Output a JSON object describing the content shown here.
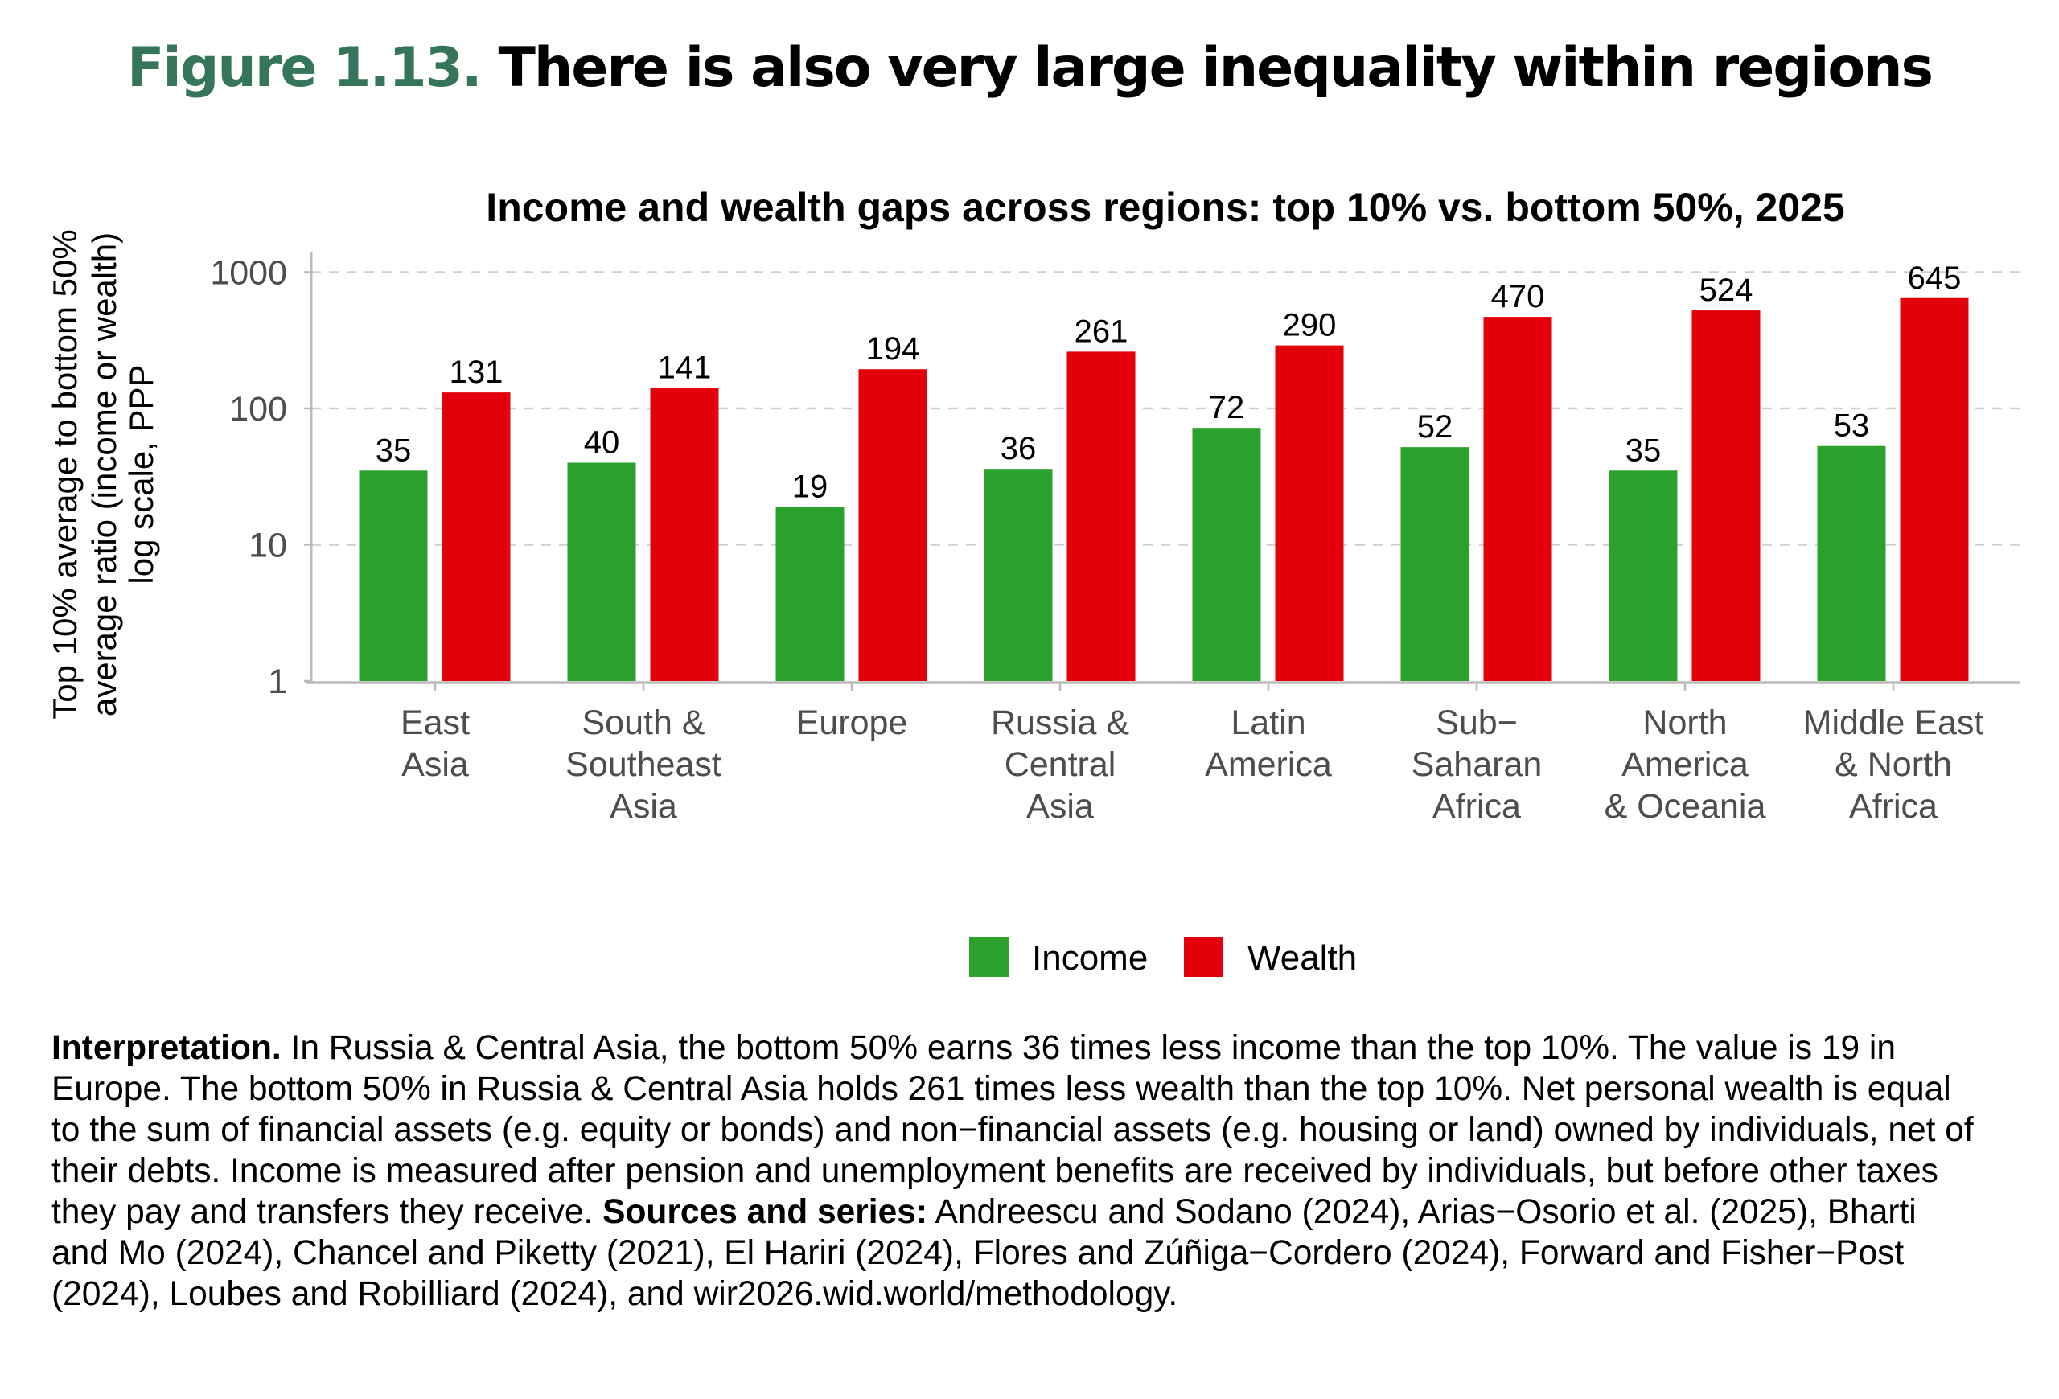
{
  "figure": {
    "number": "Figure 1.13.",
    "title": "There is also very large inequality within regions"
  },
  "chart_data": {
    "type": "bar",
    "title": "Income and wealth gaps across regions: top 10% vs. bottom 50%, 2025",
    "ylabel_lines": [
      "Top 10% average to bottom 50%",
      "average ratio  (income or wealth)",
      "log scale, PPP"
    ],
    "yscale": "log",
    "ylim": [
      1,
      1000
    ],
    "yticks": [
      1,
      10,
      100,
      1000
    ],
    "ytick_labels": [
      "1",
      "10",
      "100",
      "1000"
    ],
    "grid": "horizontal dashed",
    "legend_position": "bottom",
    "categories": [
      [
        "East",
        "Asia"
      ],
      [
        "South &",
        "Southeast",
        "Asia"
      ],
      [
        "Europe"
      ],
      [
        "Russia &",
        "Central",
        "Asia"
      ],
      [
        "Latin",
        "America"
      ],
      [
        "Sub−",
        "Saharan",
        "Africa"
      ],
      [
        "North",
        "America",
        "& Oceania"
      ],
      [
        "Middle East",
        "& North",
        "Africa"
      ]
    ],
    "series": [
      {
        "name": "Income",
        "color": "#2ca02c",
        "values": [
          35,
          40,
          19,
          36,
          72,
          52,
          35,
          53
        ]
      },
      {
        "name": "Wealth",
        "color": "#e3000b",
        "values": [
          131,
          141,
          194,
          261,
          290,
          470,
          524,
          645
        ]
      }
    ]
  },
  "interpretation": {
    "label": "Interpretation.",
    "text": " In Russia & Central Asia, the bottom 50% earns 36 times less income than the top 10%. The value is 19 in Europe. The bottom 50% in Russia & Central Asia holds 261 times less wealth than the top 10%. Net personal wealth is equal to the sum of financial assets (e.g. equity or bonds) and non−financial assets (e.g. housing or land) owned by individuals, net of their debts. Income is measured after pension and unemployment benefits are received by individuals, but before other taxes they pay and transfers they receive. ",
    "sources_label": "Sources and series:",
    "sources_text": " Andreescu and Sodano (2024), Arias−Osorio et al. (2025), Bharti and Mo (2024), Chancel and Piketty (2021), El Hariri (2024), Flores and Zúñiga−Cordero (2024), Forward and Fisher−Post (2024), Loubes and Robilliard (2024), and wir2026.wid.world/methodology."
  }
}
